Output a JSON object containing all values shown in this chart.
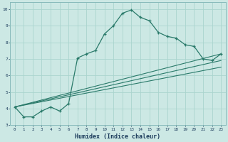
{
  "xlabel": "Humidex (Indice chaleur)",
  "background_color": "#cce8e4",
  "grid_color": "#aad4ce",
  "line_color": "#2a7a6a",
  "xlim": [
    -0.5,
    23.5
  ],
  "ylim": [
    3.0,
    10.4
  ],
  "xticks": [
    0,
    1,
    2,
    3,
    4,
    5,
    6,
    7,
    8,
    9,
    10,
    11,
    12,
    13,
    14,
    15,
    16,
    17,
    18,
    19,
    20,
    21,
    22,
    23
  ],
  "yticks": [
    3,
    4,
    5,
    6,
    7,
    8,
    9,
    10
  ],
  "series1_x": [
    0,
    1,
    2,
    3,
    4,
    5,
    6,
    7,
    8,
    9,
    10,
    11,
    12,
    13,
    14,
    15,
    16,
    17,
    18,
    19,
    20,
    21,
    22,
    23
  ],
  "series1_y": [
    4.1,
    3.5,
    3.5,
    3.85,
    4.1,
    3.85,
    4.3,
    7.05,
    7.3,
    7.5,
    8.5,
    9.0,
    9.75,
    9.95,
    9.5,
    9.3,
    8.6,
    8.35,
    8.25,
    7.85,
    7.75,
    7.0,
    6.9,
    7.3
  ],
  "series2_x": [
    0,
    23
  ],
  "series2_y": [
    4.1,
    7.3
  ],
  "series3_x": [
    0,
    23
  ],
  "series3_y": [
    4.1,
    6.9
  ],
  "series4_x": [
    0,
    23
  ],
  "series4_y": [
    4.1,
    6.5
  ]
}
